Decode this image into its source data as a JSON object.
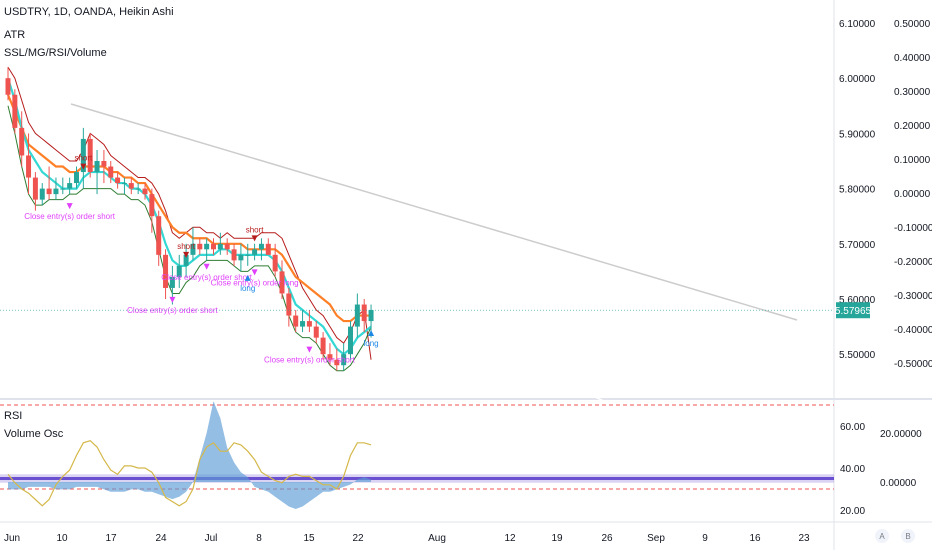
{
  "header": {
    "symbol_line": "USDTRY, 1D, OANDA, Heikin Ashi",
    "indicators": [
      "ATR",
      "SSL/MG/RSI/Volume"
    ]
  },
  "lower_pane": {
    "labels": [
      "RSI",
      "Volume Osc"
    ]
  },
  "price_tag": {
    "text": "5.57965",
    "color": "#26a69a"
  },
  "colors": {
    "up": "#26a69a",
    "down": "#ef5350",
    "ma_orange": "#ff7f27",
    "ma_cyan": "#33d8d4",
    "ssl_dark": "#2e7d32",
    "ssl_red": "#b71c1c",
    "signal_pink": "#e040fb",
    "signal_short": "#b71c1c",
    "signal_long": "#1e88e5",
    "rsi": "#d4b84a",
    "vol_fill": "#5b9bd5",
    "band": "#6a4fd0",
    "trend": "#cccccc"
  },
  "chart_data": [
    {
      "type": "candlestick",
      "title": "USDTRY, 1D, OANDA, Heikin Ashi",
      "x_ticks": [
        "Jun",
        "10",
        "17",
        "24",
        "Jul",
        "8",
        "15",
        "22",
        "Aug",
        "12",
        "19",
        "26",
        "Sep",
        "9",
        "16",
        "23"
      ],
      "y_ticks_price": [
        "6.10000",
        "6.00000",
        "5.90000",
        "5.80000",
        "5.70000",
        "5.60000",
        "5.50000"
      ],
      "y_ticks_atr": [
        "0.50000",
        "0.40000",
        "0.30000",
        "0.20000",
        "0.10000",
        "0.00000",
        "-0.10000",
        "-0.20000",
        "-0.30000",
        "-0.40000",
        "-0.50000"
      ],
      "price_ylim": [
        5.4,
        6.15
      ],
      "last_price": 5.57965,
      "ohlc": [
        [
          6.0,
          6.02,
          5.96,
          5.97
        ],
        [
          5.97,
          5.98,
          5.9,
          5.91
        ],
        [
          5.91,
          5.94,
          5.84,
          5.86
        ],
        [
          5.86,
          5.9,
          5.79,
          5.82
        ],
        [
          5.82,
          5.83,
          5.76,
          5.78
        ],
        [
          5.78,
          5.81,
          5.77,
          5.8
        ],
        [
          5.8,
          5.84,
          5.78,
          5.79
        ],
        [
          5.79,
          5.82,
          5.78,
          5.8
        ],
        [
          5.8,
          5.82,
          5.79,
          5.8
        ],
        [
          5.8,
          5.82,
          5.79,
          5.81
        ],
        [
          5.81,
          5.84,
          5.8,
          5.83
        ],
        [
          5.83,
          5.91,
          5.8,
          5.89
        ],
        [
          5.89,
          5.9,
          5.82,
          5.83
        ],
        [
          5.83,
          5.87,
          5.79,
          5.85
        ],
        [
          5.85,
          5.87,
          5.81,
          5.84
        ],
        [
          5.84,
          5.85,
          5.81,
          5.82
        ],
        [
          5.82,
          5.83,
          5.8,
          5.81
        ],
        [
          5.81,
          5.82,
          5.79,
          5.81
        ],
        [
          5.81,
          5.82,
          5.79,
          5.8
        ],
        [
          5.8,
          5.81,
          5.79,
          5.8
        ],
        [
          5.8,
          5.81,
          5.78,
          5.79
        ],
        [
          5.79,
          5.8,
          5.72,
          5.75
        ],
        [
          5.75,
          5.76,
          5.66,
          5.68
        ],
        [
          5.68,
          5.69,
          5.6,
          5.62
        ],
        [
          5.62,
          5.66,
          5.59,
          5.64
        ],
        [
          5.64,
          5.68,
          5.62,
          5.66
        ],
        [
          5.66,
          5.7,
          5.64,
          5.68
        ],
        [
          5.68,
          5.73,
          5.67,
          5.7
        ],
        [
          5.7,
          5.71,
          5.68,
          5.69
        ],
        [
          5.69,
          5.71,
          5.67,
          5.7
        ],
        [
          5.7,
          5.71,
          5.68,
          5.69
        ],
        [
          5.69,
          5.72,
          5.68,
          5.7
        ],
        [
          5.7,
          5.71,
          5.68,
          5.69
        ],
        [
          5.69,
          5.7,
          5.66,
          5.67
        ],
        [
          5.67,
          5.7,
          5.65,
          5.68
        ],
        [
          5.68,
          5.7,
          5.66,
          5.68
        ],
        [
          5.68,
          5.7,
          5.67,
          5.69
        ],
        [
          5.69,
          5.71,
          5.67,
          5.7
        ],
        [
          5.7,
          5.71,
          5.68,
          5.68
        ],
        [
          5.68,
          5.7,
          5.64,
          5.65
        ],
        [
          5.65,
          5.67,
          5.6,
          5.61
        ],
        [
          5.61,
          5.62,
          5.55,
          5.57
        ],
        [
          5.57,
          5.58,
          5.54,
          5.55
        ],
        [
          5.55,
          5.58,
          5.54,
          5.56
        ],
        [
          5.56,
          5.58,
          5.54,
          5.55
        ],
        [
          5.55,
          5.56,
          5.52,
          5.53
        ],
        [
          5.53,
          5.54,
          5.49,
          5.5
        ],
        [
          5.5,
          5.52,
          5.48,
          5.49
        ],
        [
          5.49,
          5.51,
          5.47,
          5.48
        ],
        [
          5.48,
          5.52,
          5.47,
          5.5
        ],
        [
          5.5,
          5.56,
          5.49,
          5.55
        ],
        [
          5.55,
          5.61,
          5.53,
          5.59
        ],
        [
          5.59,
          5.6,
          5.54,
          5.56
        ],
        [
          5.56,
          5.59,
          5.53,
          5.58
        ]
      ],
      "ma_orange": [
        5.97,
        5.94,
        5.91,
        5.88,
        5.87,
        5.86,
        5.85,
        5.84,
        5.84,
        5.83,
        5.83,
        5.84,
        5.84,
        5.84,
        5.84,
        5.83,
        5.83,
        5.82,
        5.82,
        5.81,
        5.81,
        5.79,
        5.77,
        5.75,
        5.73,
        5.72,
        5.72,
        5.71,
        5.71,
        5.71,
        5.7,
        5.7,
        5.7,
        5.7,
        5.7,
        5.69,
        5.69,
        5.69,
        5.69,
        5.69,
        5.68,
        5.66,
        5.64,
        5.63,
        5.62,
        5.61,
        5.6,
        5.59,
        5.57,
        5.56,
        5.56,
        5.57,
        5.57,
        5.57
      ],
      "ma_cyan": [
        6.0,
        5.96,
        5.91,
        5.87,
        5.85,
        5.83,
        5.82,
        5.81,
        5.8,
        5.8,
        5.8,
        5.82,
        5.83,
        5.83,
        5.83,
        5.82,
        5.81,
        5.81,
        5.8,
        5.8,
        5.79,
        5.77,
        5.74,
        5.7,
        5.67,
        5.66,
        5.66,
        5.67,
        5.68,
        5.68,
        5.68,
        5.69,
        5.69,
        5.68,
        5.68,
        5.68,
        5.68,
        5.68,
        5.68,
        5.67,
        5.65,
        5.62,
        5.59,
        5.58,
        5.57,
        5.56,
        5.55,
        5.53,
        5.51,
        5.5,
        5.51,
        5.53,
        5.54,
        5.55
      ],
      "ssl_red": [
        6.02,
        6.0,
        5.96,
        5.92,
        5.9,
        5.89,
        5.88,
        5.87,
        5.86,
        5.85,
        5.85,
        5.87,
        5.9,
        5.89,
        5.88,
        5.86,
        5.85,
        5.84,
        5.83,
        5.82,
        5.82,
        5.81,
        5.79,
        5.76,
        5.72,
        5.71,
        5.72,
        5.73,
        5.73,
        5.72,
        5.72,
        5.71,
        5.72,
        5.71,
        5.71,
        5.71,
        5.71,
        5.72,
        5.72,
        5.72,
        5.71,
        5.68,
        5.65,
        5.62,
        5.6,
        5.58,
        5.57,
        5.55,
        5.53,
        5.52,
        5.54,
        5.57,
        5.58,
        5.49
      ],
      "ssl_dark": [
        5.95,
        5.9,
        5.84,
        5.79,
        5.77,
        5.77,
        5.78,
        5.78,
        5.78,
        5.79,
        5.79,
        5.8,
        5.8,
        5.8,
        5.8,
        5.8,
        5.79,
        5.79,
        5.78,
        5.78,
        5.77,
        5.74,
        5.69,
        5.64,
        5.61,
        5.61,
        5.63,
        5.64,
        5.66,
        5.67,
        5.67,
        5.67,
        5.67,
        5.66,
        5.65,
        5.65,
        5.66,
        5.66,
        5.66,
        5.64,
        5.61,
        5.57,
        5.54,
        5.53,
        5.53,
        5.52,
        5.5,
        5.48,
        5.47,
        5.47,
        5.48,
        5.5,
        5.52,
        5.55
      ],
      "trendline": {
        "from": [
          2,
          5.86
        ],
        "to": [
          66,
          5.56
        ]
      },
      "signals": [
        {
          "label": "short",
          "index": 11,
          "side": "short"
        },
        {
          "label": "Close entry(s) order short",
          "index": 9,
          "side": "close"
        },
        {
          "label": "short",
          "index": 26,
          "side": "short"
        },
        {
          "label": "Close entry(s) order short",
          "index": 24,
          "side": "close"
        },
        {
          "label": "Close entry(s) order short",
          "index": 29,
          "side": "close"
        },
        {
          "label": "Close entry(s) order long",
          "index": 36,
          "side": "close"
        },
        {
          "label": "short",
          "index": 36,
          "side": "short"
        },
        {
          "label": "long",
          "index": 35,
          "side": "long"
        },
        {
          "label": "Close entry(s) order short",
          "index": 44,
          "side": "close"
        },
        {
          "label": "long",
          "index": 53,
          "side": "long"
        }
      ]
    },
    {
      "type": "area",
      "title": "RSI",
      "y_ticks_rsi": [
        "60.00",
        "40.00",
        "20.00"
      ],
      "y_ticks_vol": [
        "20.00000",
        "0.00000"
      ],
      "rsi_ylim": [
        15,
        75
      ],
      "rsi": [
        37,
        33,
        30,
        28,
        25,
        22,
        25,
        32,
        36,
        39,
        46,
        52,
        53,
        50,
        44,
        39,
        37,
        41,
        41,
        40,
        40,
        38,
        33,
        26,
        24,
        22,
        24,
        30,
        44,
        50,
        52,
        48,
        48,
        52,
        51,
        48,
        44,
        38,
        36,
        34,
        33,
        36,
        37,
        36,
        36,
        34,
        32,
        32,
        30,
        36,
        46,
        52,
        52,
        51
      ],
      "volume_osc": [
        -3,
        -3,
        -3,
        -2,
        -2,
        -2,
        -2,
        -3,
        -3,
        -3,
        -2,
        -2,
        -2,
        -2,
        -3,
        -4,
        -4,
        -4,
        -3,
        -3,
        -4,
        -4,
        -5,
        -6,
        -7,
        -6,
        -4,
        0,
        10,
        20,
        33,
        26,
        14,
        8,
        4,
        2,
        -2,
        -3,
        -4,
        -6,
        -8,
        -10,
        -11,
        -10,
        -8,
        -6,
        -4,
        -4,
        -3,
        -2,
        -1,
        1,
        2,
        1
      ],
      "vol_ylim": [
        -40,
        35
      ],
      "rsi_band": [
        40,
        30
      ]
    }
  ]
}
